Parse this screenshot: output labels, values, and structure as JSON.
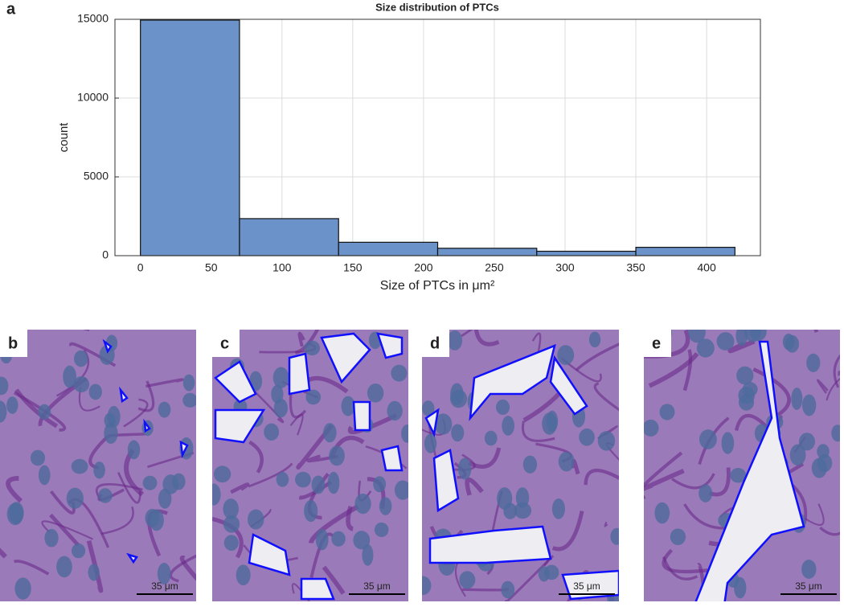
{
  "chart_data": {
    "type": "histogram",
    "panel_label": "a",
    "title": "Size distribution of PTCs",
    "x_label": "Size of PTCs in μm²",
    "y_label": "count",
    "bins": [
      0,
      70,
      140,
      210,
      280,
      350,
      420
    ],
    "counts": [
      14950,
      2350,
      850,
      470,
      280,
      530
    ],
    "color": "#6b93c9",
    "xlim": [
      -18,
      438
    ],
    "ylim": [
      0,
      15000
    ],
    "xticks": [
      0,
      50,
      100,
      150,
      200,
      250,
      300,
      350,
      400
    ],
    "yticks": [
      0,
      5000,
      10000,
      15000
    ],
    "grid": true
  },
  "images": {
    "panel_labels": [
      "b",
      "c",
      "d",
      "e"
    ],
    "scale_bar": "35 μm"
  }
}
